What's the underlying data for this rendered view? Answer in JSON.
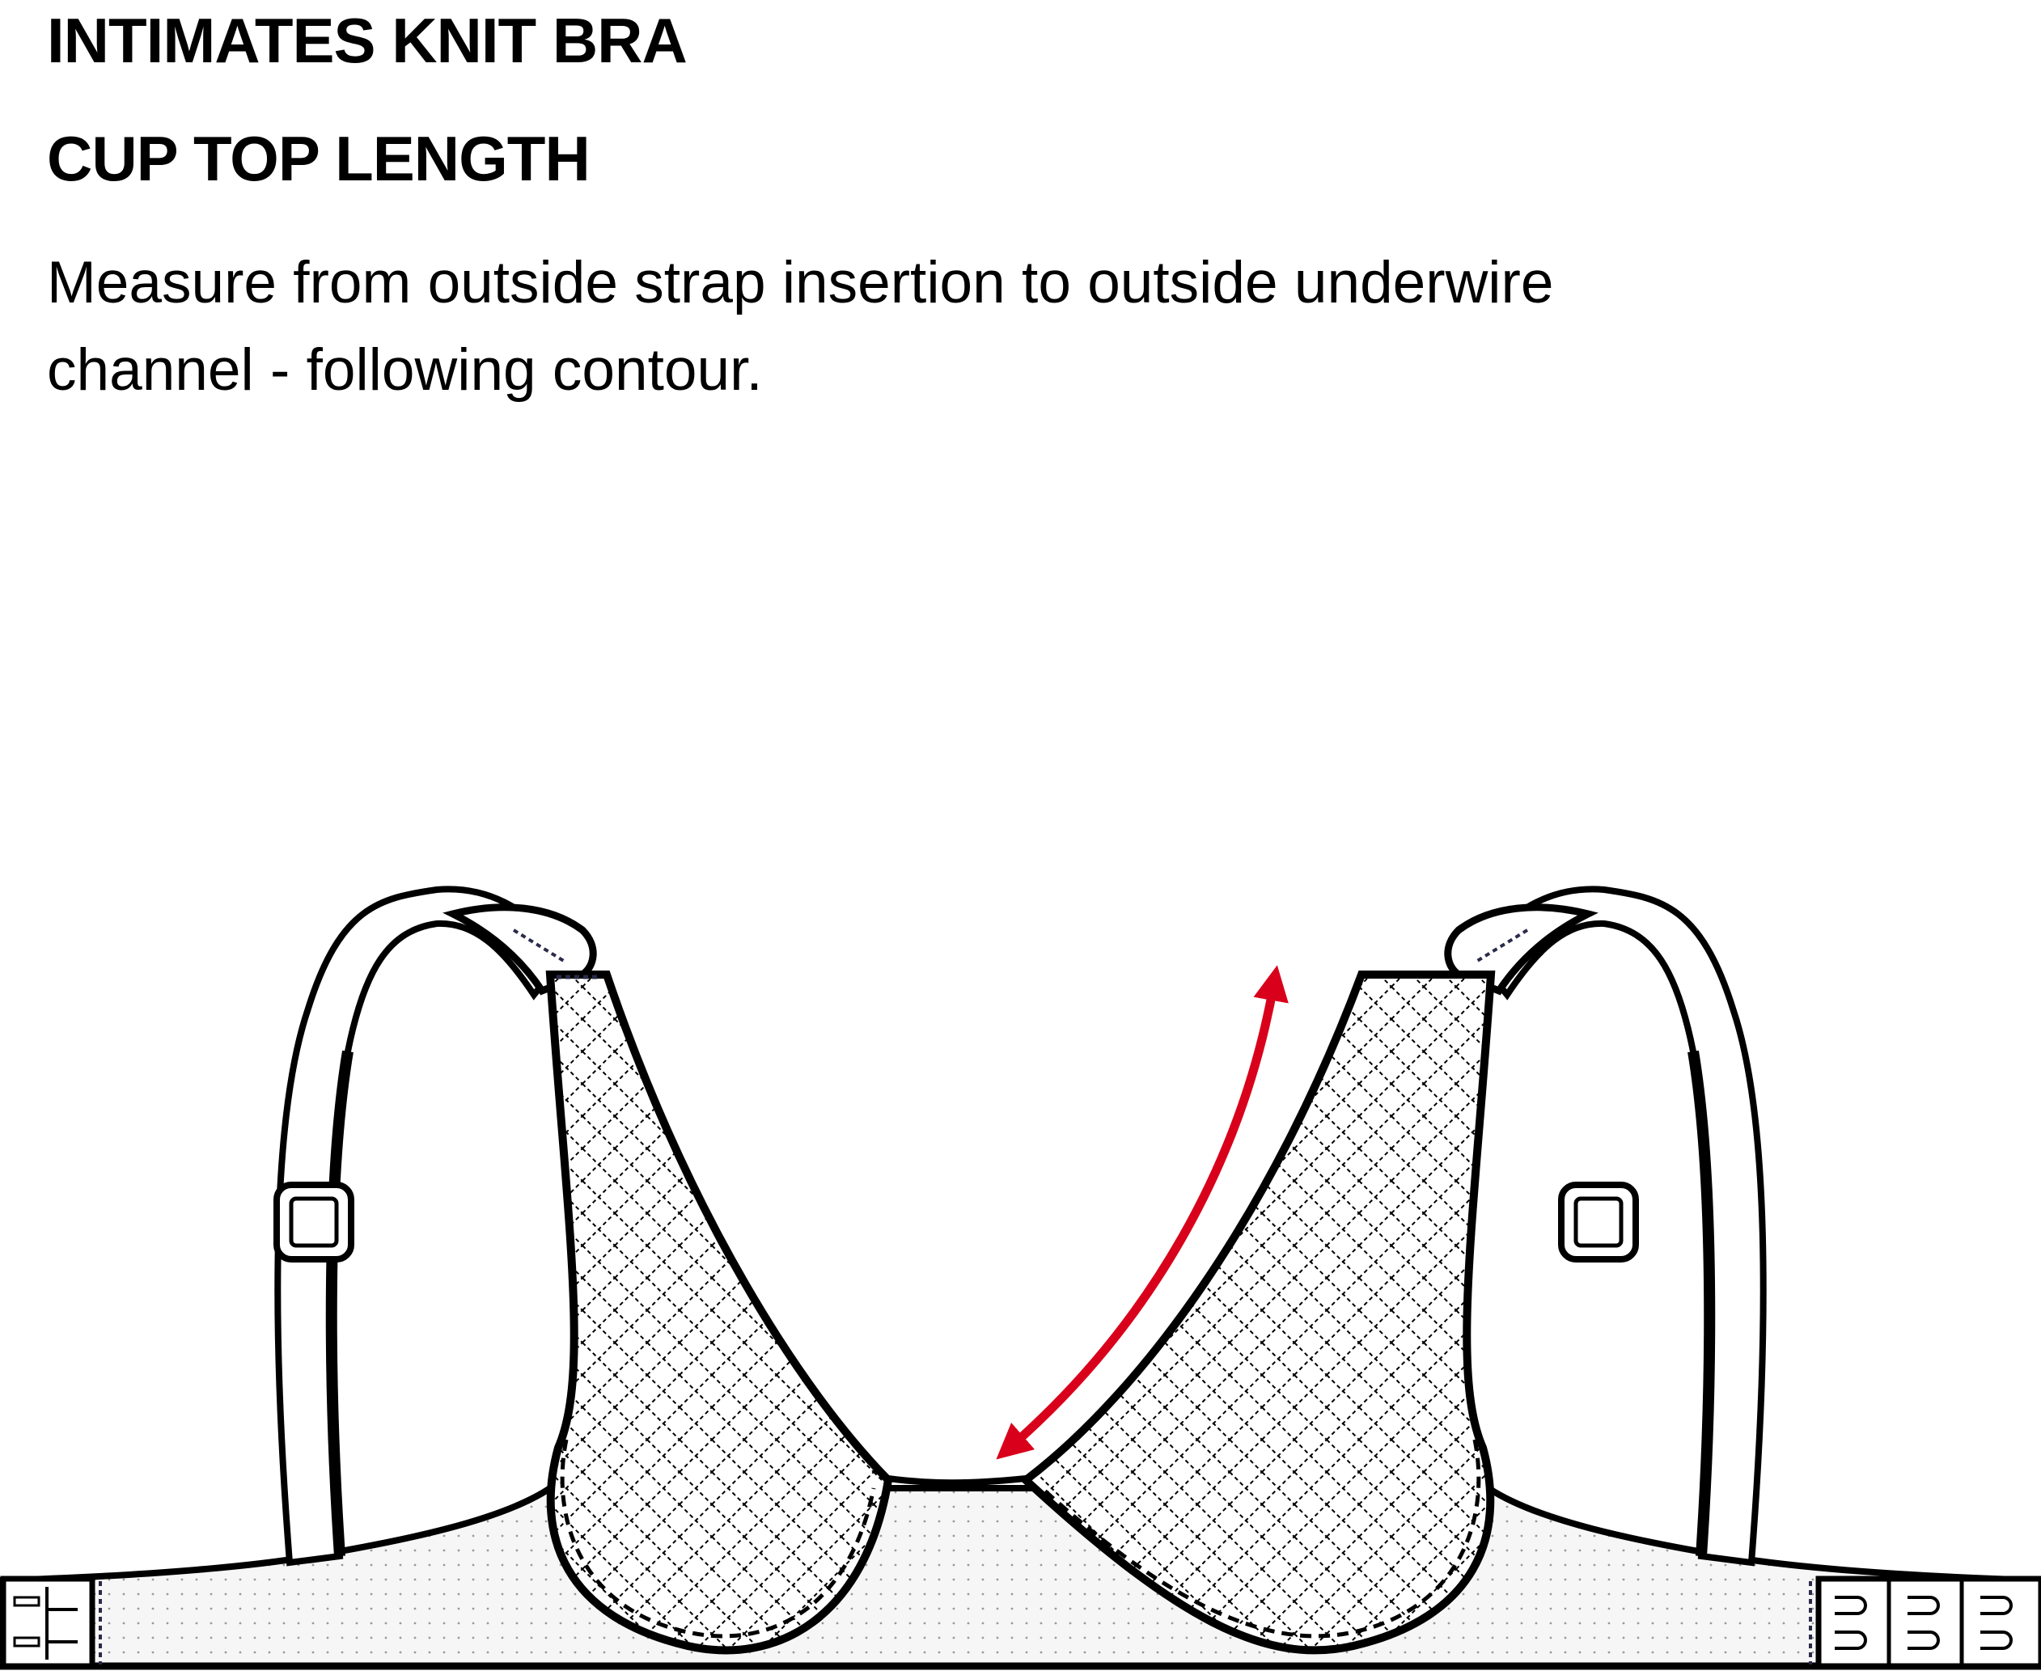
{
  "heading": {
    "title": "INTIMATES KNIT BRA",
    "subtitle": "CUP TOP LENGTH"
  },
  "instruction": {
    "line1": "Measure from outside strap insertion to outside underwire",
    "line2": "channel - following contour."
  },
  "colors": {
    "outline": "#000000",
    "arrow": "#d9001b",
    "band_fill": "#f4f4f4",
    "cup_fill": "#ffffff"
  },
  "icons": {
    "measurement": "double-headed-arrow-icon",
    "slider": "strap-slider-icon",
    "closure": "hook-and-eye-closure-icon"
  }
}
